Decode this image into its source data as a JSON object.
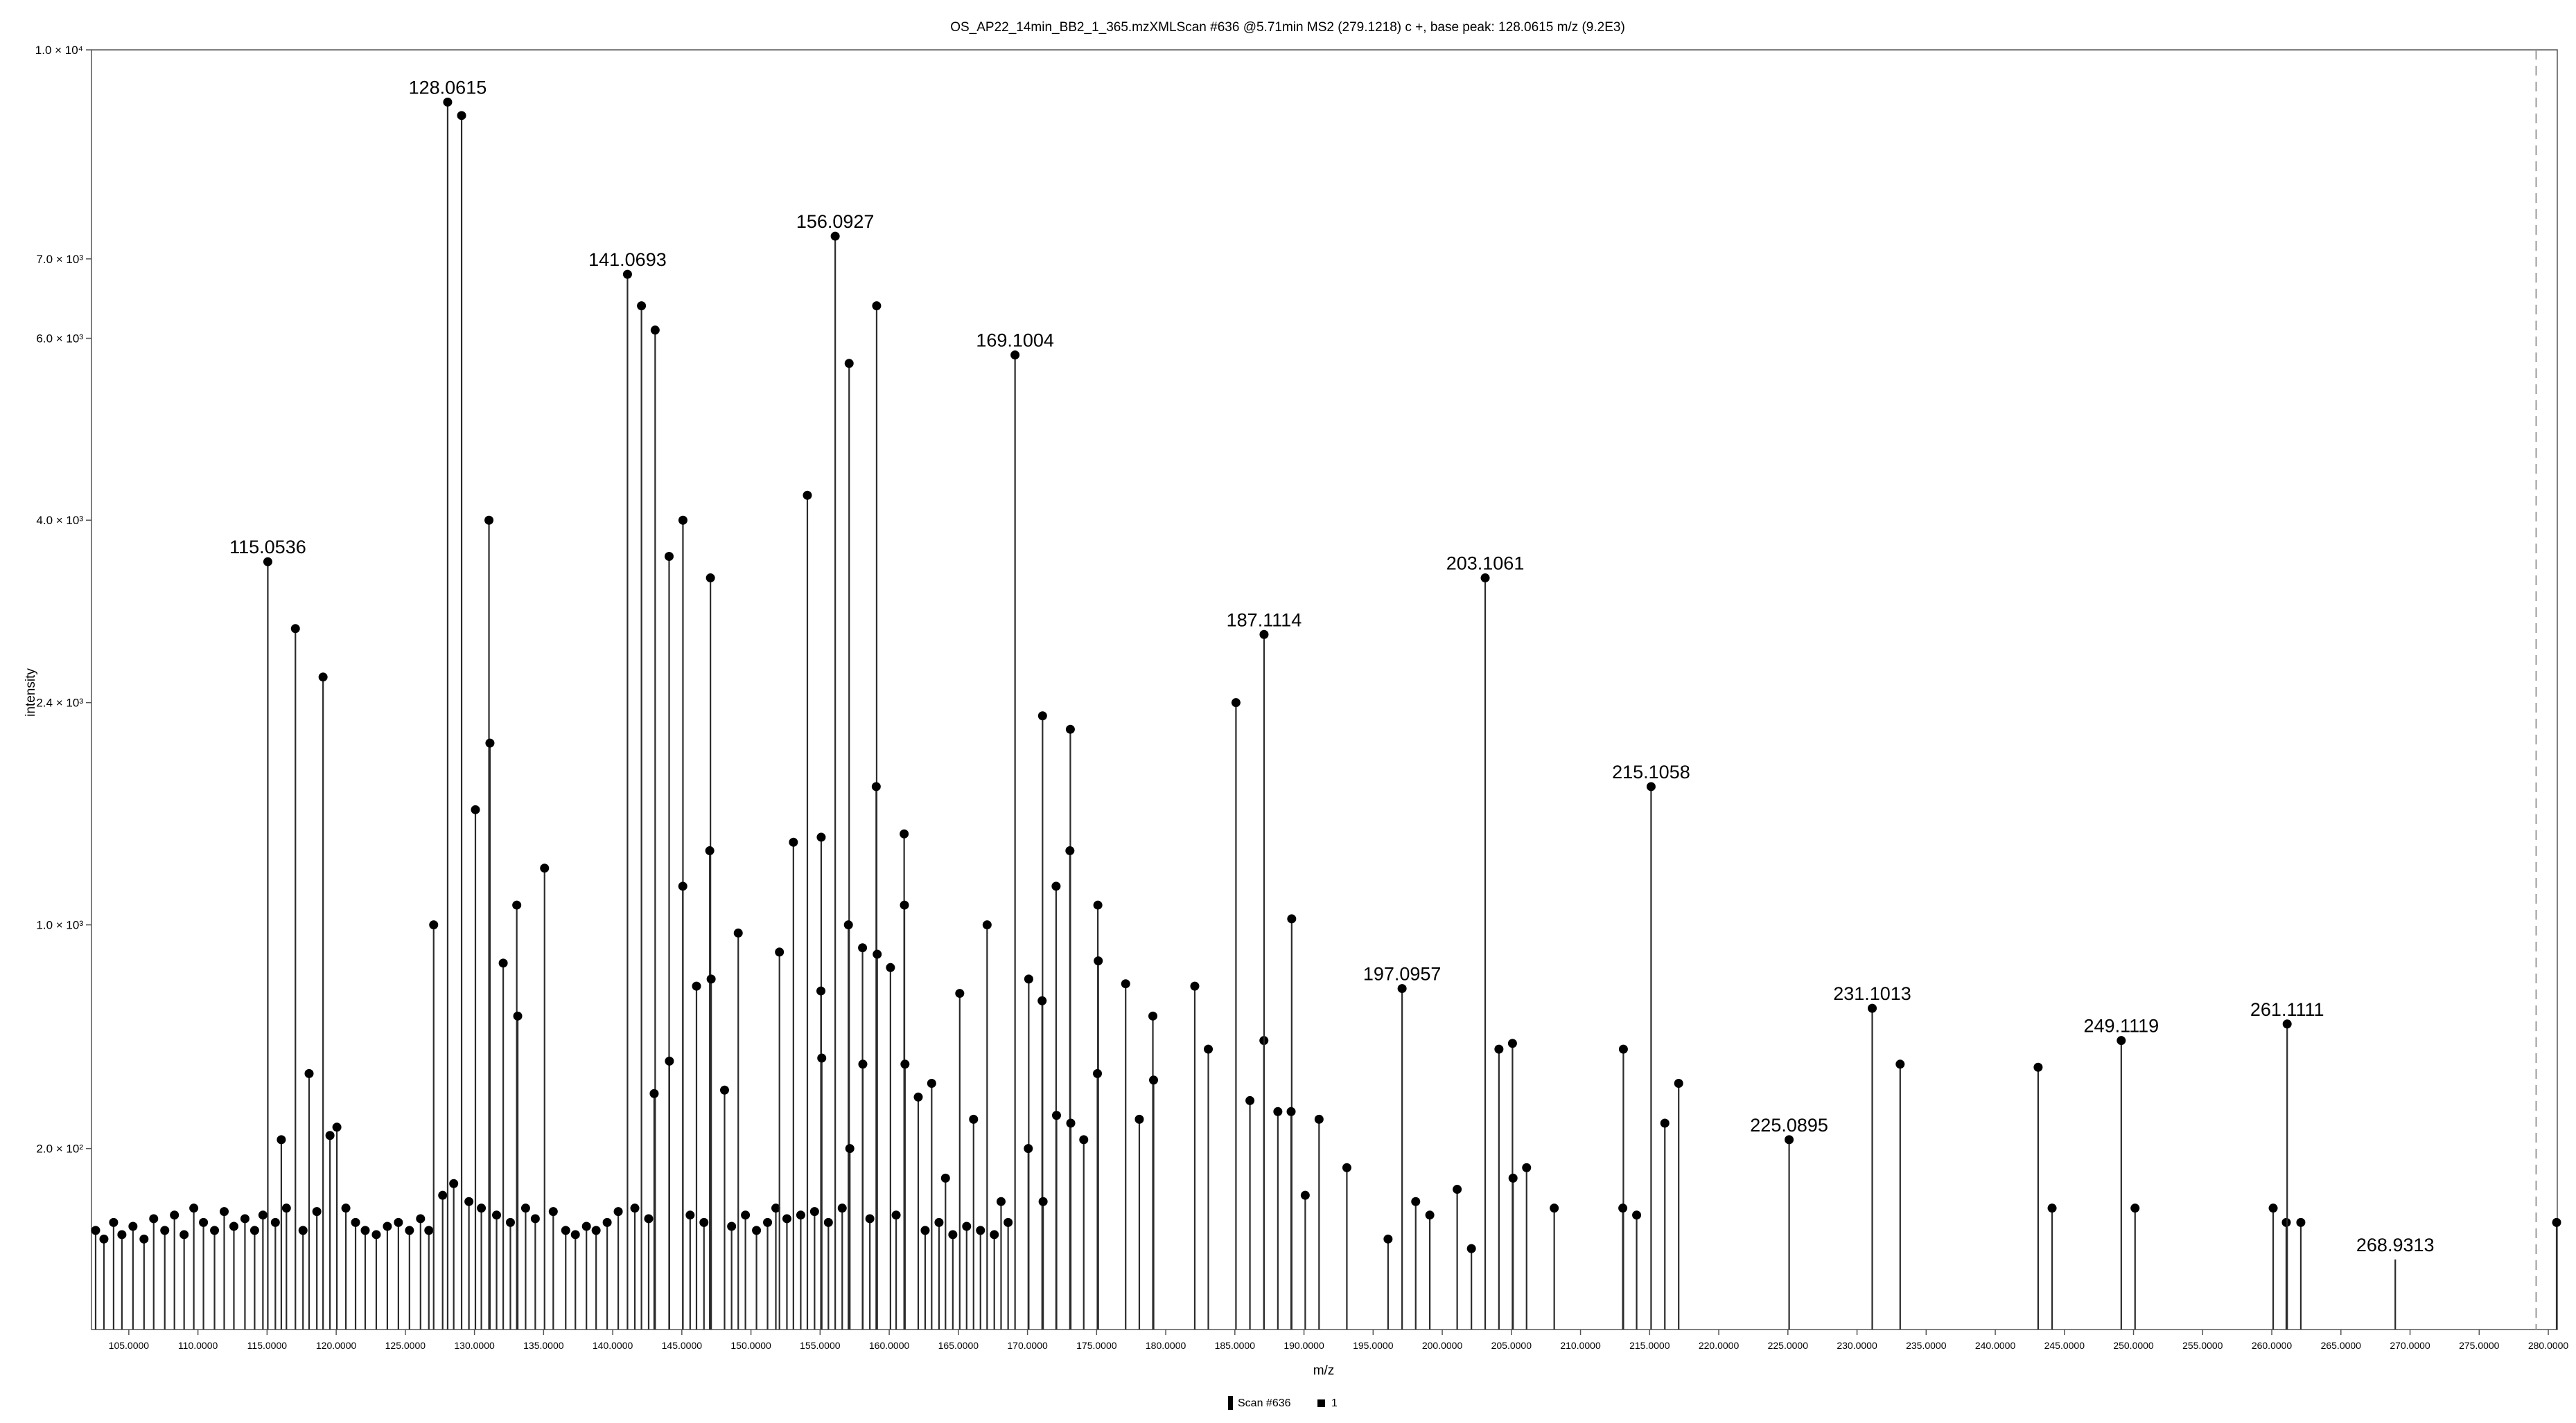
{
  "chart_data": {
    "type": "spectrum",
    "title": "OS_AP22_14min_BB2_1_365.mzXMLScan #636 @5.71min MS2 (279.1218) c +, base peak: 128.0615 m/z (9.2E3)",
    "xlabel": "m/z",
    "ylabel": "intensity",
    "xlim": [
      102.3,
      280.65
    ],
    "ylim": [
      0,
      10000
    ],
    "y_scale": "sqrt",
    "y_ticks": [
      {
        "value": 200,
        "label": "2.0 × 10²"
      },
      {
        "value": 1000,
        "label": "1.0 × 10³"
      },
      {
        "value": 2400,
        "label": "2.4 × 10³"
      },
      {
        "value": 4000,
        "label": "4.0 × 10³"
      },
      {
        "value": 6000,
        "label": "6.0 × 10³"
      },
      {
        "value": 7000,
        "label": "7.0 × 10³"
      },
      {
        "value": 10000,
        "label": "1.0 × 10⁴"
      }
    ],
    "x_ticks": [
      "105.0000",
      "110.0000",
      "115.0000",
      "120.0000",
      "125.0000",
      "130.0000",
      "135.0000",
      "140.0000",
      "145.0000",
      "150.0000",
      "155.0000",
      "160.0000",
      "165.0000",
      "170.0000",
      "175.0000",
      "180.0000",
      "185.0000",
      "190.0000",
      "195.0000",
      "200.0000",
      "205.0000",
      "210.0000",
      "215.0000",
      "220.0000",
      "225.0000",
      "230.0000",
      "235.0000",
      "240.0000",
      "245.0000",
      "250.0000",
      "255.0000",
      "260.0000",
      "265.0000",
      "270.0000",
      "275.0000",
      "280.0000"
    ],
    "precursor_mz": 279.1218,
    "colors": {
      "stem": "#2b2b2b",
      "marker": "#000000",
      "precursor_line": "#9a9a9a",
      "axis": "#555555"
    },
    "labeled_peaks": [
      {
        "mz": 115.0536,
        "intensity": 3600,
        "label": "115.0536"
      },
      {
        "mz": 128.0615,
        "intensity": 9200,
        "label": "128.0615"
      },
      {
        "mz": 141.0693,
        "intensity": 6800,
        "label": "141.0693"
      },
      {
        "mz": 156.0927,
        "intensity": 7300,
        "label": "156.0927"
      },
      {
        "mz": 169.1004,
        "intensity": 5800,
        "label": "169.1004"
      },
      {
        "mz": 187.1114,
        "intensity": 2950,
        "label": "187.1114"
      },
      {
        "mz": 197.0957,
        "intensity": 710,
        "label": "197.0957"
      },
      {
        "mz": 203.1061,
        "intensity": 3450,
        "label": "203.1061"
      },
      {
        "mz": 215.1058,
        "intensity": 1800,
        "label": "215.1058"
      },
      {
        "mz": 225.0895,
        "intensity": 220,
        "label": "225.0895"
      },
      {
        "mz": 231.1013,
        "intensity": 630,
        "label": "231.1013"
      },
      {
        "mz": 249.1119,
        "intensity": 510,
        "label": "249.1119"
      },
      {
        "mz": 261.1111,
        "intensity": 570,
        "label": "261.1111"
      },
      {
        "mz": 268.9313,
        "intensity": 30,
        "label": "268.9313"
      }
    ],
    "peaks": [
      {
        "mz": 117.05,
        "intensity": 3000
      },
      {
        "mz": 119.05,
        "intensity": 2600
      },
      {
        "mz": 116.03,
        "intensity": 220
      },
      {
        "mz": 118.04,
        "intensity": 400
      },
      {
        "mz": 119.55,
        "intensity": 230
      },
      {
        "mz": 120.05,
        "intensity": 250
      },
      {
        "mz": 127.05,
        "intensity": 1000
      },
      {
        "mz": 129.07,
        "intensity": 9000
      },
      {
        "mz": 130.07,
        "intensity": 1650
      },
      {
        "mz": 131.05,
        "intensity": 4000
      },
      {
        "mz": 131.12,
        "intensity": 2100
      },
      {
        "mz": 132.08,
        "intensity": 820
      },
      {
        "mz": 133.06,
        "intensity": 1100
      },
      {
        "mz": 133.13,
        "intensity": 600
      },
      {
        "mz": 135.07,
        "intensity": 1300
      },
      {
        "mz": 142.08,
        "intensity": 6400
      },
      {
        "mz": 143.07,
        "intensity": 6100
      },
      {
        "mz": 143.0,
        "intensity": 340
      },
      {
        "mz": 144.08,
        "intensity": 3650
      },
      {
        "mz": 144.1,
        "intensity": 440
      },
      {
        "mz": 145.08,
        "intensity": 4000
      },
      {
        "mz": 145.07,
        "intensity": 1200
      },
      {
        "mz": 146.06,
        "intensity": 720
      },
      {
        "mz": 147.07,
        "intensity": 3450
      },
      {
        "mz": 147.02,
        "intensity": 1400
      },
      {
        "mz": 147.12,
        "intensity": 750
      },
      {
        "mz": 148.09,
        "intensity": 350
      },
      {
        "mz": 149.08,
        "intensity": 960
      },
      {
        "mz": 152.06,
        "intensity": 870
      },
      {
        "mz": 153.07,
        "intensity": 1450
      },
      {
        "mz": 154.08,
        "intensity": 4250
      },
      {
        "mz": 155.08,
        "intensity": 1480
      },
      {
        "mz": 155.06,
        "intensity": 700
      },
      {
        "mz": 155.12,
        "intensity": 450
      },
      {
        "mz": 157.1,
        "intensity": 5700
      },
      {
        "mz": 157.05,
        "intensity": 1000
      },
      {
        "mz": 157.15,
        "intensity": 200
      },
      {
        "mz": 158.07,
        "intensity": 890
      },
      {
        "mz": 158.09,
        "intensity": 430
      },
      {
        "mz": 159.09,
        "intensity": 6400
      },
      {
        "mz": 159.06,
        "intensity": 1800
      },
      {
        "mz": 159.13,
        "intensity": 860
      },
      {
        "mz": 160.09,
        "intensity": 800
      },
      {
        "mz": 161.08,
        "intensity": 1500
      },
      {
        "mz": 161.1,
        "intensity": 1100
      },
      {
        "mz": 161.14,
        "intensity": 430
      },
      {
        "mz": 162.1,
        "intensity": 330
      },
      {
        "mz": 163.07,
        "intensity": 370
      },
      {
        "mz": 164.07,
        "intensity": 140
      },
      {
        "mz": 165.1,
        "intensity": 690
      },
      {
        "mz": 166.1,
        "intensity": 270
      },
      {
        "mz": 167.08,
        "intensity": 1000
      },
      {
        "mz": 168.09,
        "intensity": 100
      },
      {
        "mz": 170.09,
        "intensity": 750
      },
      {
        "mz": 170.06,
        "intensity": 200
      },
      {
        "mz": 171.09,
        "intensity": 2300
      },
      {
        "mz": 171.06,
        "intensity": 660
      },
      {
        "mz": 171.13,
        "intensity": 100
      },
      {
        "mz": 172.07,
        "intensity": 1200
      },
      {
        "mz": 172.1,
        "intensity": 280
      },
      {
        "mz": 173.1,
        "intensity": 2200
      },
      {
        "mz": 173.07,
        "intensity": 1400
      },
      {
        "mz": 173.13,
        "intensity": 260
      },
      {
        "mz": 174.07,
        "intensity": 220
      },
      {
        "mz": 175.09,
        "intensity": 1100
      },
      {
        "mz": 175.12,
        "intensity": 830
      },
      {
        "mz": 175.06,
        "intensity": 400
      },
      {
        "mz": 177.1,
        "intensity": 730
      },
      {
        "mz": 178.09,
        "intensity": 270
      },
      {
        "mz": 179.07,
        "intensity": 600
      },
      {
        "mz": 179.12,
        "intensity": 380
      },
      {
        "mz": 182.1,
        "intensity": 720
      },
      {
        "mz": 183.08,
        "intensity": 480
      },
      {
        "mz": 185.08,
        "intensity": 2400
      },
      {
        "mz": 186.09,
        "intensity": 320
      },
      {
        "mz": 187.1,
        "intensity": 510
      },
      {
        "mz": 188.11,
        "intensity": 290
      },
      {
        "mz": 189.11,
        "intensity": 1030
      },
      {
        "mz": 189.07,
        "intensity": 290
      },
      {
        "mz": 190.09,
        "intensity": 110
      },
      {
        "mz": 191.09,
        "intensity": 270
      },
      {
        "mz": 193.1,
        "intensity": 160
      },
      {
        "mz": 196.08,
        "intensity": 50
      },
      {
        "mz": 198.08,
        "intensity": 100
      },
      {
        "mz": 199.1,
        "intensity": 80
      },
      {
        "mz": 201.08,
        "intensity": 120
      },
      {
        "mz": 202.11,
        "intensity": 40
      },
      {
        "mz": 204.1,
        "intensity": 480
      },
      {
        "mz": 205.08,
        "intensity": 500
      },
      {
        "mz": 205.12,
        "intensity": 140
      },
      {
        "mz": 206.1,
        "intensity": 160
      },
      {
        "mz": 208.1,
        "intensity": 90
      },
      {
        "mz": 213.1,
        "intensity": 480
      },
      {
        "mz": 213.06,
        "intensity": 90
      },
      {
        "mz": 214.06,
        "intensity": 80
      },
      {
        "mz": 216.1,
        "intensity": 260
      },
      {
        "mz": 217.1,
        "intensity": 370
      },
      {
        "mz": 233.12,
        "intensity": 430
      },
      {
        "mz": 243.1,
        "intensity": 420
      },
      {
        "mz": 244.11,
        "intensity": 90
      },
      {
        "mz": 250.11,
        "intensity": 90
      },
      {
        "mz": 260.1,
        "intensity": 90
      },
      {
        "mz": 261.05,
        "intensity": 70
      },
      {
        "mz": 262.1,
        "intensity": 70
      },
      {
        "mz": 280.6,
        "intensity": 70
      }
    ],
    "noise_peaks": [
      {
        "mz": 102.6,
        "intensity": 60
      },
      {
        "mz": 103.2,
        "intensity": 50
      },
      {
        "mz": 103.9,
        "intensity": 70
      },
      {
        "mz": 104.5,
        "intensity": 55
      },
      {
        "mz": 105.3,
        "intensity": 65
      },
      {
        "mz": 106.1,
        "intensity": 50
      },
      {
        "mz": 106.8,
        "intensity": 75
      },
      {
        "mz": 107.6,
        "intensity": 60
      },
      {
        "mz": 108.3,
        "intensity": 80
      },
      {
        "mz": 109.0,
        "intensity": 55
      },
      {
        "mz": 109.7,
        "intensity": 90
      },
      {
        "mz": 110.4,
        "intensity": 70
      },
      {
        "mz": 111.2,
        "intensity": 60
      },
      {
        "mz": 111.9,
        "intensity": 85
      },
      {
        "mz": 112.6,
        "intensity": 65
      },
      {
        "mz": 113.4,
        "intensity": 75
      },
      {
        "mz": 114.1,
        "intensity": 60
      },
      {
        "mz": 114.7,
        "intensity": 80
      },
      {
        "mz": 115.6,
        "intensity": 70
      },
      {
        "mz": 116.4,
        "intensity": 90
      },
      {
        "mz": 117.6,
        "intensity": 60
      },
      {
        "mz": 118.6,
        "intensity": 85
      },
      {
        "mz": 120.7,
        "intensity": 90
      },
      {
        "mz": 121.4,
        "intensity": 70
      },
      {
        "mz": 122.1,
        "intensity": 60
      },
      {
        "mz": 122.9,
        "intensity": 55
      },
      {
        "mz": 123.7,
        "intensity": 65
      },
      {
        "mz": 124.5,
        "intensity": 70
      },
      {
        "mz": 125.3,
        "intensity": 60
      },
      {
        "mz": 126.1,
        "intensity": 75
      },
      {
        "mz": 126.7,
        "intensity": 60
      },
      {
        "mz": 127.7,
        "intensity": 110
      },
      {
        "mz": 128.5,
        "intensity": 130
      },
      {
        "mz": 129.6,
        "intensity": 100
      },
      {
        "mz": 130.5,
        "intensity": 90
      },
      {
        "mz": 131.6,
        "intensity": 80
      },
      {
        "mz": 132.6,
        "intensity": 70
      },
      {
        "mz": 133.7,
        "intensity": 90
      },
      {
        "mz": 134.4,
        "intensity": 75
      },
      {
        "mz": 135.7,
        "intensity": 85
      },
      {
        "mz": 136.6,
        "intensity": 60
      },
      {
        "mz": 137.3,
        "intensity": 55
      },
      {
        "mz": 138.1,
        "intensity": 65
      },
      {
        "mz": 138.8,
        "intensity": 60
      },
      {
        "mz": 139.6,
        "intensity": 70
      },
      {
        "mz": 140.4,
        "intensity": 85
      },
      {
        "mz": 141.6,
        "intensity": 90
      },
      {
        "mz": 142.6,
        "intensity": 75
      },
      {
        "mz": 145.6,
        "intensity": 80
      },
      {
        "mz": 146.6,
        "intensity": 70
      },
      {
        "mz": 148.6,
        "intensity": 65
      },
      {
        "mz": 149.6,
        "intensity": 80
      },
      {
        "mz": 150.4,
        "intensity": 60
      },
      {
        "mz": 151.2,
        "intensity": 70
      },
      {
        "mz": 151.8,
        "intensity": 90
      },
      {
        "mz": 152.6,
        "intensity": 75
      },
      {
        "mz": 153.6,
        "intensity": 80
      },
      {
        "mz": 154.6,
        "intensity": 85
      },
      {
        "mz": 155.6,
        "intensity": 70
      },
      {
        "mz": 156.6,
        "intensity": 90
      },
      {
        "mz": 158.6,
        "intensity": 75
      },
      {
        "mz": 160.5,
        "intensity": 80
      },
      {
        "mz": 162.6,
        "intensity": 60
      },
      {
        "mz": 163.6,
        "intensity": 70
      },
      {
        "mz": 164.6,
        "intensity": 55
      },
      {
        "mz": 165.6,
        "intensity": 65
      },
      {
        "mz": 166.6,
        "intensity": 60
      },
      {
        "mz": 167.6,
        "intensity": 55
      },
      {
        "mz": 168.6,
        "intensity": 70
      }
    ],
    "legend": [
      {
        "label": "Scan #636",
        "marker": "bar"
      },
      {
        "label": "1",
        "marker": "square"
      }
    ],
    "legend_placement": "bottom-center",
    "grid": false
  }
}
